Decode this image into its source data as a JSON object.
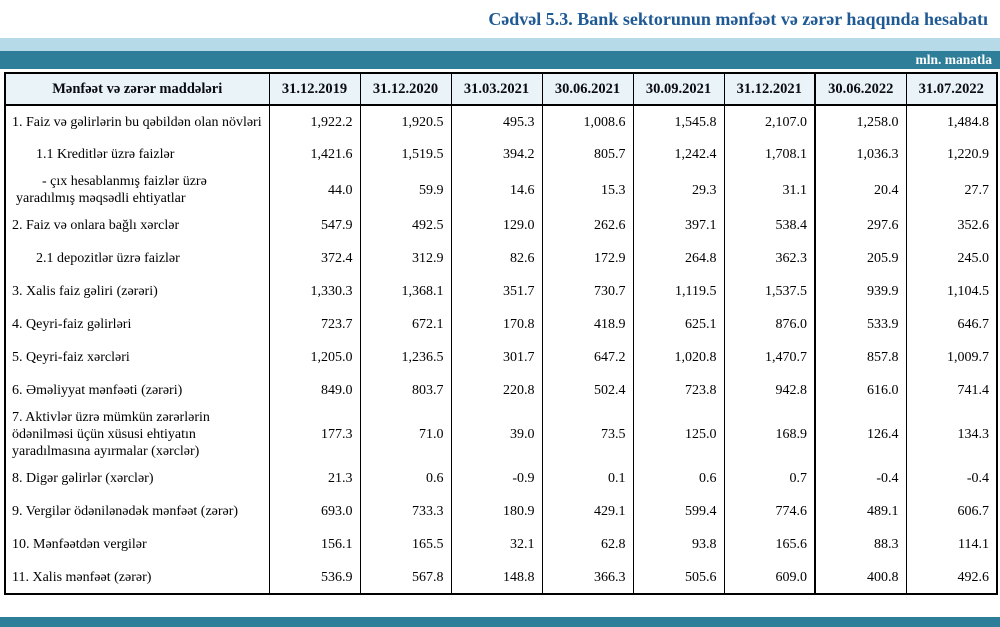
{
  "title": "Cədvəl 5.3. Bank sektorunun mənfəət və zərər haqqında hesabatı",
  "unit_label": "mln. manatla",
  "colors": {
    "title_blue": "#1f5a94",
    "light_bar": "#b7dae8",
    "teal_bar": "#2e7e99",
    "header_bg": "#e9f3f8"
  },
  "table": {
    "header": [
      "Mənfəət və zərər maddələri",
      "31.12.2019",
      "31.12.2020",
      "31.03.2021",
      "30.06.2021",
      "30.09.2021",
      "31.12.2021",
      "30.06.2022",
      "31.07.2022"
    ],
    "rows": [
      {
        "label": "1. Faiz və gəlirlərin bu qəbildən olan növləri",
        "indent": 0,
        "values": [
          "1,922.2",
          "1,920.5",
          "495.3",
          "1,008.6",
          "1,545.8",
          "2,107.0",
          "1,258.0",
          "1,484.8"
        ]
      },
      {
        "label": "1.1 Kreditlər üzrə faizlər",
        "indent": 1,
        "values": [
          "1,421.6",
          "1,519.5",
          "394.2",
          "805.7",
          "1,242.4",
          "1,708.1",
          "1,036.3",
          "1,220.9"
        ]
      },
      {
        "label": "-  çıx hesablanmış faizlər üzrə yaradılmış məqsədli ehtiyatlar",
        "indent": 2,
        "values": [
          "44.0",
          "59.9",
          "14.6",
          "15.3",
          "29.3",
          "31.1",
          "20.4",
          "27.7"
        ]
      },
      {
        "label": "2. Faiz və onlara bağlı xərclər",
        "indent": 0,
        "values": [
          "547.9",
          "492.5",
          "129.0",
          "262.6",
          "397.1",
          "538.4",
          "297.6",
          "352.6"
        ]
      },
      {
        "label": "2.1 depozitlər üzrə faizlər",
        "indent": 1,
        "values": [
          "372.4",
          "312.9",
          "82.6",
          "172.9",
          "264.8",
          "362.3",
          "205.9",
          "245.0"
        ]
      },
      {
        "label": "3. Xalis faiz gəliri (zərəri)",
        "indent": 0,
        "values": [
          "1,330.3",
          "1,368.1",
          "351.7",
          "730.7",
          "1,119.5",
          "1,537.5",
          "939.9",
          "1,104.5"
        ]
      },
      {
        "label": "4. Qeyri-faiz gəlirləri",
        "indent": 0,
        "values": [
          "723.7",
          "672.1",
          "170.8",
          "418.9",
          "625.1",
          "876.0",
          "533.9",
          "646.7"
        ]
      },
      {
        "label": "5. Qeyri-faiz xərcləri",
        "indent": 0,
        "values": [
          "1,205.0",
          "1,236.5",
          "301.7",
          "647.2",
          "1,020.8",
          "1,470.7",
          "857.8",
          "1,009.7"
        ]
      },
      {
        "label": "6. Əməliyyat mənfəəti (zərəri)",
        "indent": 0,
        "values": [
          "849.0",
          "803.7",
          "220.8",
          "502.4",
          "723.8",
          "942.8",
          "616.0",
          "741.4"
        ]
      },
      {
        "label": "7. Aktivlər üzrə mümkün zərərlərin ödənilməsi üçün xüsusi ehtiyatın yaradılmasına ayırmalar (xərclər)",
        "indent": 0,
        "values": [
          "177.3",
          "71.0",
          "39.0",
          "73.5",
          "125.0",
          "168.9",
          "126.4",
          "134.3"
        ]
      },
      {
        "label": "8. Digər gəlirlər (xərclər)",
        "indent": 0,
        "values": [
          "21.3",
          "0.6",
          "-0.9",
          "0.1",
          "0.6",
          "0.7",
          "-0.4",
          "-0.4"
        ]
      },
      {
        "label": "9. Vergilər ödənilənədək mənfəət (zərər)",
        "indent": 0,
        "values": [
          "693.0",
          "733.3",
          "180.9",
          "429.1",
          "599.4",
          "774.6",
          "489.1",
          "606.7"
        ]
      },
      {
        "label": "10. Mənfəətdən vergilər",
        "indent": 0,
        "values": [
          "156.1",
          "165.5",
          "32.1",
          "62.8",
          "93.8",
          "165.6",
          "88.3",
          "114.1"
        ]
      },
      {
        "label": "11. Xalis mənfəət (zərər)",
        "indent": 0,
        "values": [
          "536.9",
          "567.8",
          "148.8",
          "366.3",
          "505.6",
          "609.0",
          "400.8",
          "492.6"
        ]
      }
    ]
  }
}
